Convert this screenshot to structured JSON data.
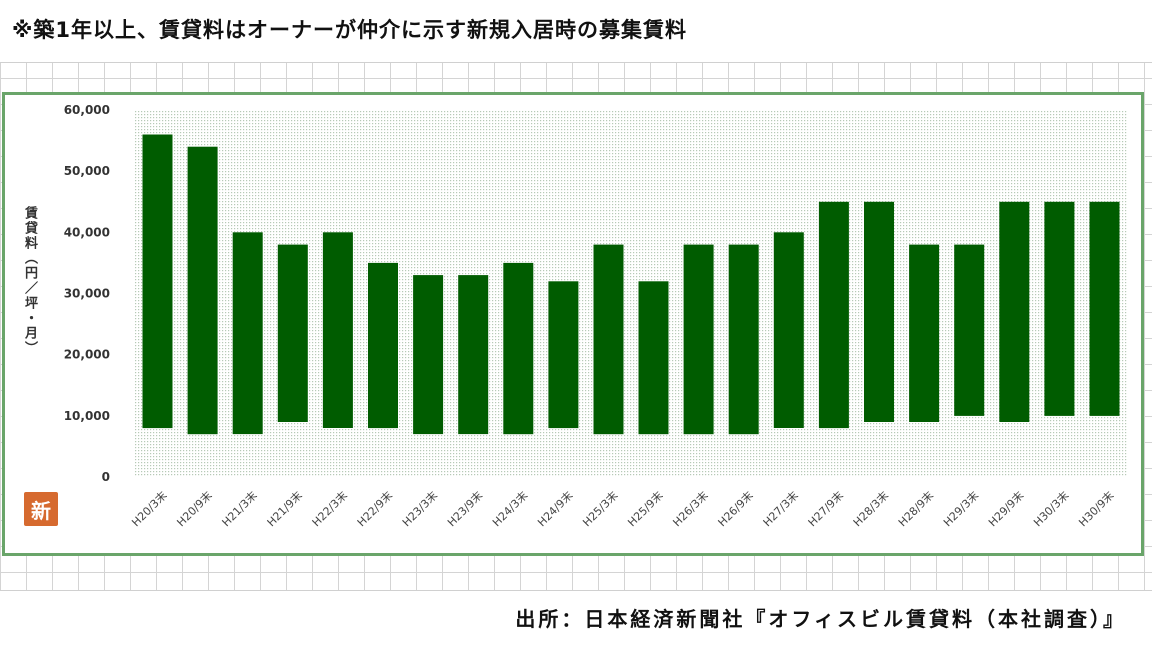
{
  "header": {
    "note": "※築1年以上、賃貸料はオーナーが仲介に示す新規入居時の募集賃料"
  },
  "seal": {
    "char": "新"
  },
  "footer": {
    "source": "出所：日本経済新聞社『オフィスビル賃貸料（本社調査）』"
  },
  "colors": {
    "bar": "#005c00",
    "plot_dots": "#b6c9b6",
    "frame": "#6aa56a"
  },
  "chart_data": {
    "type": "bar",
    "subtype": "floating-range",
    "title": "",
    "xlabel": "",
    "ylabel": "賃貸料（円／坪・月）",
    "ylim": [
      0,
      60000
    ],
    "yticks": [
      0,
      10000,
      20000,
      30000,
      40000,
      50000,
      60000
    ],
    "ytick_labels": [
      "0",
      "10,000",
      "20,000",
      "30,000",
      "40,000",
      "50,000",
      "60,000"
    ],
    "grid": false,
    "legend": "none",
    "categories": [
      "H20/3末",
      "H20/9末",
      "H21/3末",
      "H21/9末",
      "H22/3末",
      "H22/9末",
      "H23/3末",
      "H23/9末",
      "H24/3末",
      "H24/9末",
      "H25/3末",
      "H25/9末",
      "H26/3末",
      "H26/9末",
      "H27/3末",
      "H27/9末",
      "H28/3末",
      "H28/9末",
      "H29/3末",
      "H29/9末",
      "H30/3末",
      "H30/9末"
    ],
    "series": [
      {
        "label": "low",
        "values": [
          8000,
          7000,
          7000,
          9000,
          8000,
          8000,
          7000,
          7000,
          7000,
          8000,
          7000,
          7000,
          7000,
          7000,
          8000,
          8000,
          9000,
          9000,
          10000,
          9000,
          10000,
          10000
        ]
      },
      {
        "label": "high",
        "values": [
          56000,
          54000,
          40000,
          38000,
          40000,
          35000,
          33000,
          33000,
          35000,
          32000,
          38000,
          32000,
          38000,
          38000,
          40000,
          45000,
          45000,
          38000,
          38000,
          45000,
          45000,
          45000
        ]
      }
    ]
  }
}
